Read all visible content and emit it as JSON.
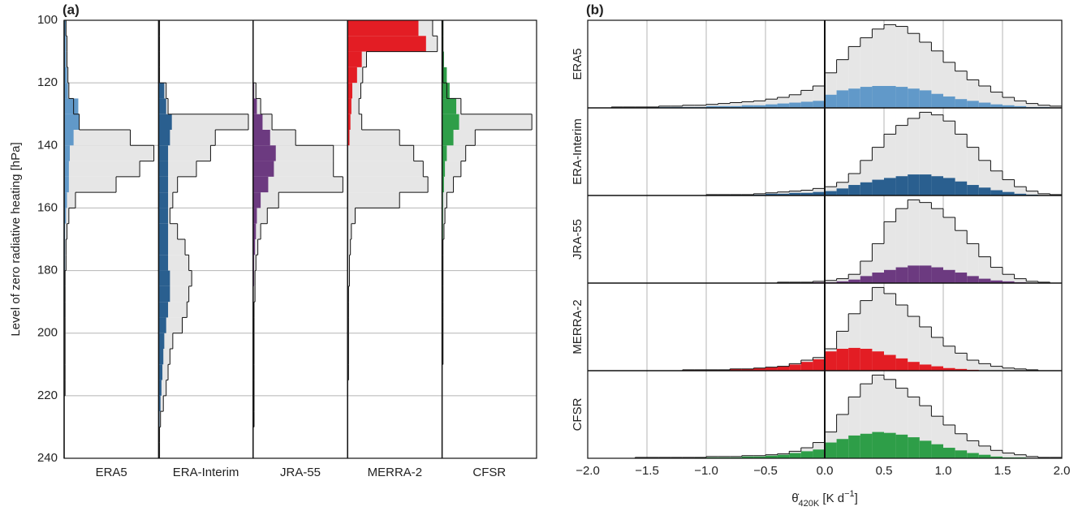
{
  "chart_data": [
    {
      "type": "histogram",
      "orientation": "horizontal",
      "title": "(a)",
      "ylabel": "Level of zero radiative heating [hPa]",
      "bins": [
        100,
        105,
        110,
        115,
        120,
        125,
        130,
        135,
        140,
        145,
        150,
        155,
        160,
        165,
        170,
        175,
        180,
        185,
        190,
        195,
        200,
        205,
        210,
        215,
        220,
        225,
        230,
        235,
        240
      ],
      "ylim": [
        240,
        100
      ],
      "yticks": [
        100,
        120,
        140,
        160,
        180,
        200,
        220,
        240
      ],
      "xlim": [
        0,
        100
      ],
      "grid": true,
      "total_color": "#e6e6e6",
      "facets": [
        {
          "name": "ERA5",
          "color": "#6199c9",
          "values": [
            2,
            2,
            2,
            3,
            4,
            15,
            16,
            10,
            6,
            5,
            5,
            3,
            2,
            1,
            1,
            1,
            1,
            1,
            1,
            0,
            0,
            0,
            0,
            0,
            0,
            0,
            0,
            0
          ],
          "total_values": [
            2,
            3,
            3,
            4,
            5,
            10,
            16,
            70,
            95,
            80,
            55,
            12,
            5,
            3,
            2,
            2,
            1,
            1,
            1,
            1,
            1,
            1,
            1,
            1,
            0,
            0,
            0,
            0
          ]
        },
        {
          "name": "ERA-Interim",
          "color": "#2a5f8f",
          "values": [
            0,
            0,
            0,
            0,
            6,
            8,
            14,
            12,
            10,
            10,
            10,
            10,
            10,
            10,
            10,
            10,
            12,
            12,
            10,
            8,
            6,
            5,
            4,
            3,
            2,
            1,
            0,
            0
          ],
          "total_values": [
            1,
            1,
            1,
            1,
            8,
            10,
            95,
            60,
            55,
            40,
            20,
            15,
            12,
            20,
            28,
            32,
            35,
            32,
            30,
            25,
            15,
            12,
            10,
            8,
            5,
            2,
            1,
            1
          ]
        },
        {
          "name": "JRA-55",
          "color": "#6c3a80",
          "values": [
            0,
            0,
            0,
            0,
            1,
            4,
            10,
            18,
            24,
            22,
            16,
            8,
            4,
            3,
            2,
            1,
            1,
            0,
            0,
            0,
            0,
            0,
            0,
            0,
            0,
            0,
            0,
            0
          ],
          "total_values": [
            0,
            0,
            0,
            0,
            3,
            8,
            20,
            45,
            85,
            85,
            95,
            27,
            15,
            8,
            5,
            3,
            2,
            2,
            1,
            1,
            1,
            1,
            1,
            1,
            1,
            1,
            0,
            0
          ]
        },
        {
          "name": "MERRA-2",
          "color": "#e31d24",
          "values": [
            75,
            83,
            15,
            10,
            5,
            4,
            3,
            2,
            0,
            0,
            0,
            0,
            0,
            0,
            0,
            0,
            0,
            0,
            0,
            0,
            0,
            0,
            0,
            0,
            0,
            0,
            0,
            0
          ],
          "total_values": [
            90,
            95,
            20,
            16,
            14,
            12,
            15,
            55,
            70,
            80,
            85,
            55,
            8,
            4,
            3,
            2,
            2,
            1,
            1,
            1,
            1,
            1,
            1,
            0,
            0,
            0,
            0,
            0
          ]
        },
        {
          "name": "CFSR",
          "color": "#2e9e48",
          "values": [
            1,
            1,
            2,
            5,
            8,
            15,
            18,
            12,
            5,
            3,
            2,
            1,
            1,
            1,
            0,
            0,
            0,
            0,
            0,
            0,
            0,
            0,
            0,
            0,
            0,
            0,
            0,
            0
          ],
          "total_values": [
            1,
            1,
            1,
            1,
            5,
            20,
            95,
            35,
            25,
            20,
            12,
            5,
            3,
            2,
            1,
            1,
            1,
            1,
            1,
            1,
            1,
            1,
            0,
            0,
            0,
            0,
            0,
            0
          ]
        }
      ]
    },
    {
      "type": "histogram",
      "orientation": "vertical",
      "title": "(b)",
      "xlabel_parts": [
        "θ̇",
        "420K",
        " [K d",
        "−1",
        "]"
      ],
      "bins": [
        -2,
        -1.9,
        -1.8,
        -1.7,
        -1.6,
        -1.5,
        -1.4,
        -1.3,
        -1.2,
        -1.1,
        -1,
        -0.9,
        -0.8,
        -0.7,
        -0.6,
        -0.5,
        -0.4,
        -0.3,
        -0.2,
        -0.1,
        0,
        0.1,
        0.2,
        0.3,
        0.4,
        0.5,
        0.6,
        0.7,
        0.8,
        0.9,
        1,
        1.1,
        1.2,
        1.3,
        1.4,
        1.5,
        1.6,
        1.7,
        1.8,
        1.9,
        2
      ],
      "xlim": [
        -2,
        2
      ],
      "xticks": [
        {
          "value": -2,
          "label": "−2.0"
        },
        {
          "value": -1.5,
          "label": "−1.5"
        },
        {
          "value": -1,
          "label": "−1.0"
        },
        {
          "value": -0.5,
          "label": "−0.5"
        },
        {
          "value": 0,
          "label": "0.0"
        },
        0.5,
        {
          "value": 1,
          "label": "1.0"
        },
        1.5,
        {
          "value": 2,
          "label": "2.0"
        }
      ],
      "ylim": [
        0,
        100
      ],
      "grid": true,
      "total_color": "#e6e6e6",
      "facets": [
        {
          "name": "ERA5",
          "color": "#6199c9",
          "values": [
            0,
            0,
            0,
            0,
            0,
            1,
            1,
            1,
            1,
            1,
            2,
            2,
            2,
            3,
            3,
            4,
            5,
            6,
            7,
            8,
            15,
            20,
            22,
            24,
            25,
            25,
            24,
            22,
            20,
            16,
            13,
            10,
            8,
            6,
            4,
            3,
            2,
            1,
            1,
            0
          ],
          "total_values": [
            0,
            0,
            1,
            1,
            1,
            1,
            2,
            2,
            3,
            3,
            4,
            5,
            6,
            7,
            8,
            10,
            12,
            15,
            20,
            25,
            40,
            55,
            70,
            80,
            90,
            95,
            93,
            85,
            75,
            65,
            52,
            42,
            32,
            25,
            18,
            12,
            8,
            5,
            3,
            2
          ]
        },
        {
          "name": "ERA-Interim",
          "color": "#2a5f8f",
          "values": [
            0,
            0,
            0,
            0,
            0,
            0,
            0,
            0,
            0,
            0,
            0,
            0,
            1,
            1,
            1,
            2,
            2,
            3,
            3,
            4,
            5,
            8,
            12,
            15,
            18,
            20,
            22,
            24,
            24,
            22,
            20,
            16,
            12,
            9,
            6,
            4,
            2,
            1,
            0,
            0
          ],
          "total_values": [
            0,
            0,
            0,
            0,
            0,
            0,
            0,
            0,
            0,
            0,
            1,
            1,
            1,
            1,
            2,
            3,
            4,
            5,
            6,
            8,
            10,
            15,
            25,
            40,
            55,
            70,
            80,
            88,
            95,
            92,
            85,
            70,
            55,
            40,
            28,
            18,
            10,
            5,
            2,
            1
          ]
        },
        {
          "name": "JRA-55",
          "color": "#6c3a80",
          "values": [
            0,
            0,
            0,
            0,
            0,
            0,
            0,
            0,
            0,
            0,
            0,
            0,
            0,
            0,
            0,
            0,
            0,
            0,
            0,
            1,
            1,
            2,
            4,
            8,
            12,
            15,
            18,
            20,
            20,
            18,
            15,
            12,
            8,
            5,
            3,
            2,
            1,
            0,
            0,
            0
          ],
          "total_values": [
            0,
            0,
            0,
            0,
            0,
            0,
            0,
            0,
            0,
            0,
            0,
            0,
            0,
            0,
            0,
            0,
            1,
            1,
            1,
            2,
            3,
            5,
            10,
            25,
            45,
            70,
            85,
            95,
            92,
            85,
            75,
            60,
            45,
            30,
            18,
            10,
            5,
            2,
            1,
            0
          ]
        },
        {
          "name": "MERRA-2",
          "color": "#e31d24",
          "values": [
            0,
            0,
            0,
            0,
            0,
            0,
            0,
            0,
            1,
            1,
            1,
            1,
            2,
            2,
            3,
            4,
            5,
            7,
            10,
            13,
            22,
            25,
            26,
            25,
            22,
            18,
            14,
            10,
            7,
            5,
            3,
            2,
            1,
            0,
            0,
            0,
            0,
            0,
            0,
            0
          ],
          "total_values": [
            0,
            0,
            0,
            0,
            0,
            0,
            0,
            0,
            1,
            1,
            1,
            1,
            2,
            2,
            3,
            4,
            5,
            8,
            12,
            15,
            25,
            45,
            65,
            80,
            95,
            88,
            75,
            62,
            50,
            38,
            28,
            20,
            12,
            8,
            5,
            3,
            2,
            1,
            0,
            0
          ]
        },
        {
          "name": "CFSR",
          "color": "#2e9e48",
          "values": [
            0,
            0,
            0,
            0,
            0,
            0,
            0,
            0,
            0,
            1,
            1,
            1,
            1,
            2,
            2,
            3,
            4,
            6,
            8,
            10,
            18,
            22,
            26,
            28,
            30,
            29,
            27,
            24,
            20,
            16,
            12,
            9,
            6,
            4,
            2,
            1,
            1,
            0,
            0,
            0
          ],
          "total_values": [
            0,
            0,
            0,
            0,
            1,
            1,
            1,
            1,
            1,
            1,
            2,
            2,
            2,
            3,
            3,
            4,
            5,
            8,
            12,
            18,
            30,
            50,
            70,
            85,
            95,
            90,
            80,
            70,
            60,
            48,
            38,
            28,
            20,
            14,
            9,
            6,
            4,
            2,
            1,
            1
          ]
        }
      ]
    }
  ]
}
